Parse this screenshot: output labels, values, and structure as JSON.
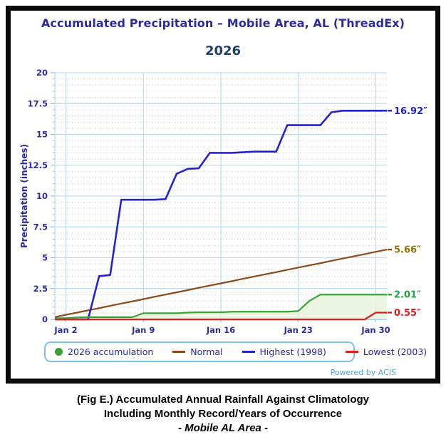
{
  "chart_data": {
    "type": "line",
    "title": "Accumulated Precipitation – Mobile Area, AL (ThreadEx)",
    "subtitle": "2026",
    "xlabel": "",
    "ylabel": "Precipitation (inches)",
    "ylim": [
      0,
      20
    ],
    "y_major_ticks": [
      0,
      2.5,
      5,
      7.5,
      10,
      12.5,
      15,
      17.5,
      20
    ],
    "y_minor_step": 0.5,
    "x_start_day": 1,
    "x_end_day": 31,
    "x_tick_days": [
      2,
      9,
      16,
      23,
      30
    ],
    "x_tick_labels": [
      "Jan 2",
      "Jan 9",
      "Jan 16",
      "Jan 23",
      "Jan 30"
    ],
    "grid": true,
    "legend_position": "bottom",
    "series": [
      {
        "name": "2026 accumulation",
        "color": "#3aa336",
        "fill": "#e9f3dd",
        "end_label": "2.01″",
        "end_label_color": "#1fa33c",
        "final_value": 2.01,
        "values": [
          0.08,
          0.1,
          0.16,
          0.18,
          0.18,
          0.18,
          0.18,
          0.18,
          0.5,
          0.5,
          0.5,
          0.5,
          0.55,
          0.58,
          0.58,
          0.58,
          0.62,
          0.62,
          0.62,
          0.62,
          0.62,
          0.62,
          0.68,
          1.5,
          2.01,
          2.01,
          2.01,
          2.01,
          2.01,
          2.01,
          2.01
        ]
      },
      {
        "name": "Normal",
        "color": "#8b4a18",
        "end_label": "5.66″",
        "end_label_color": "#8f7300",
        "final_value": 5.66,
        "values": [
          0.18,
          0.37,
          0.55,
          0.73,
          0.91,
          1.1,
          1.28,
          1.46,
          1.64,
          1.83,
          2.01,
          2.19,
          2.37,
          2.56,
          2.74,
          2.92,
          3.1,
          3.29,
          3.47,
          3.65,
          3.83,
          4.02,
          4.2,
          4.38,
          4.56,
          4.75,
          4.93,
          5.11,
          5.29,
          5.48,
          5.66
        ]
      },
      {
        "name": "Highest (1998)",
        "color": "#2424cf",
        "end_label": "16.92″",
        "end_label_color": "#2020cc",
        "final_value": 16.92,
        "values": [
          0,
          0,
          0,
          0,
          3.5,
          3.6,
          9.7,
          9.7,
          9.7,
          9.7,
          9.75,
          11.8,
          12.2,
          12.25,
          13.5,
          13.5,
          13.5,
          13.55,
          13.6,
          13.6,
          13.6,
          15.75,
          15.75,
          15.75,
          15.75,
          16.8,
          16.92,
          16.92,
          16.92,
          16.92,
          16.92
        ]
      },
      {
        "name": "Lowest (2003)",
        "color": "#e51c1c",
        "end_label": "0.55″",
        "end_label_color": "#e51717",
        "final_value": 0.55,
        "values": [
          0,
          0,
          0,
          0,
          0,
          0,
          0,
          0,
          0,
          0,
          0,
          0,
          0,
          0,
          0,
          0,
          0,
          0,
          0,
          0,
          0,
          0,
          0,
          0,
          0,
          0,
          0,
          0,
          0,
          0.55,
          0.55
        ]
      }
    ]
  },
  "colors": {
    "title_navy": "#2a2aa3",
    "subtitle_navy": "#234069",
    "axis_label_navy": "#2a2aa3",
    "grid_major": "#bddcf2",
    "grid_minor": "#b7c3d9",
    "axis_line": "#9dcdec",
    "legend_border": "#7fc0e8",
    "powered_by_blue": "#4aa4de",
    "frame_border": "#0a0a0a"
  },
  "footer": {
    "powered_by": "Powered by ACIS"
  },
  "caption": {
    "line1": "(Fig E.) Accumulated Annual Rainfall Against  Climatology",
    "line2": "Including Monthly Record/Years of Occurrence",
    "line3": "- Mobile AL Area -"
  }
}
